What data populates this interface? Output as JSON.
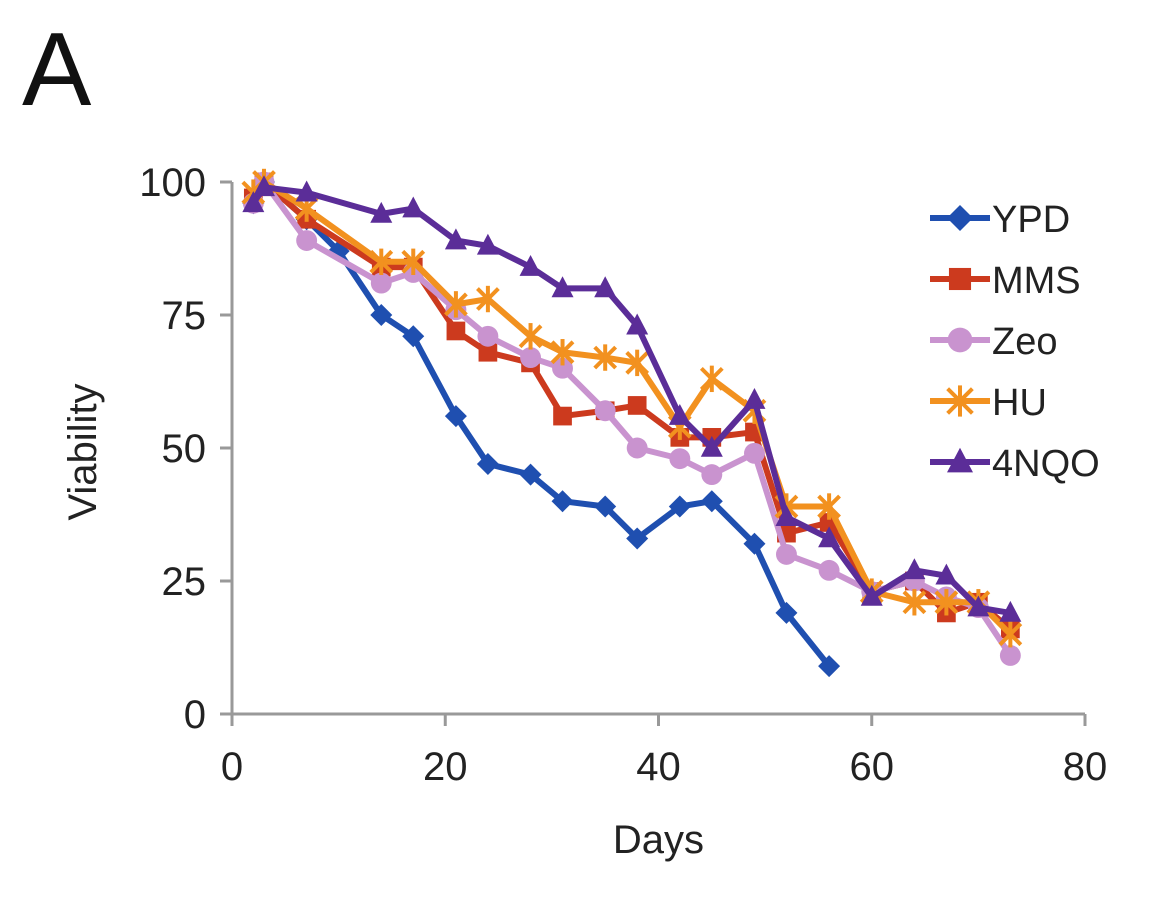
{
  "panel_label": "A",
  "chart_data": {
    "type": "line",
    "xlabel": "Days",
    "ylabel": "Viability",
    "xlim": [
      0,
      80
    ],
    "ylim": [
      0,
      100
    ],
    "xticks": [
      "0",
      "20",
      "40",
      "60",
      "80"
    ],
    "yticks": [
      "0",
      "25",
      "50",
      "75",
      "100"
    ],
    "grid": false,
    "legend_position": "top-right",
    "series": [
      {
        "name": "YPD",
        "color": "#1f4fb0",
        "marker": "diamond",
        "x": [
          2,
          3,
          7,
          10,
          14,
          17,
          21,
          24,
          28,
          31,
          35,
          38,
          42,
          45,
          49,
          52,
          56
        ],
        "y": [
          96,
          100,
          93,
          87,
          75,
          71,
          56,
          47,
          45,
          40,
          39,
          33,
          39,
          40,
          32,
          19,
          9
        ]
      },
      {
        "name": "MMS",
        "color": "#cc3a1e",
        "marker": "square",
        "x": [
          2,
          3,
          7,
          14,
          17,
          21,
          24,
          28,
          31,
          35,
          38,
          42,
          45,
          49,
          52,
          56,
          60,
          64,
          67,
          70,
          73
        ],
        "y": [
          97,
          100,
          93,
          84,
          84,
          72,
          68,
          66,
          56,
          57,
          58,
          52,
          52,
          53,
          34,
          36,
          23,
          25,
          19,
          21,
          16
        ]
      },
      {
        "name": "Zeo",
        "color": "#c993cf",
        "marker": "circle",
        "x": [
          2,
          3,
          7,
          14,
          17,
          21,
          24,
          28,
          31,
          35,
          38,
          42,
          45,
          49,
          52,
          56,
          60,
          64,
          67,
          70,
          73
        ],
        "y": [
          96,
          100,
          89,
          81,
          83,
          76,
          71,
          67,
          65,
          57,
          50,
          48,
          45,
          49,
          30,
          27,
          23,
          25,
          22,
          20,
          11
        ]
      },
      {
        "name": "HU",
        "color": "#f2911f",
        "marker": "star",
        "x": [
          2,
          3,
          7,
          14,
          17,
          21,
          24,
          28,
          31,
          35,
          38,
          42,
          45,
          49,
          52,
          56,
          60,
          64,
          67,
          70,
          73
        ],
        "y": [
          98,
          100,
          95,
          85,
          85,
          77,
          78,
          71,
          68,
          67,
          66,
          54,
          63,
          57,
          39,
          39,
          23,
          21,
          21,
          21,
          15
        ]
      },
      {
        "name": "4NQO",
        "color": "#5b2d98",
        "marker": "triangle",
        "x": [
          2,
          3,
          7,
          14,
          17,
          21,
          24,
          28,
          31,
          35,
          38,
          42,
          45,
          49,
          52,
          56,
          60,
          64,
          67,
          70,
          73
        ],
        "y": [
          96,
          99,
          98,
          94,
          95,
          89,
          88,
          84,
          80,
          80,
          73,
          56,
          50,
          59,
          37,
          33,
          22,
          27,
          26,
          20,
          19
        ]
      }
    ]
  }
}
